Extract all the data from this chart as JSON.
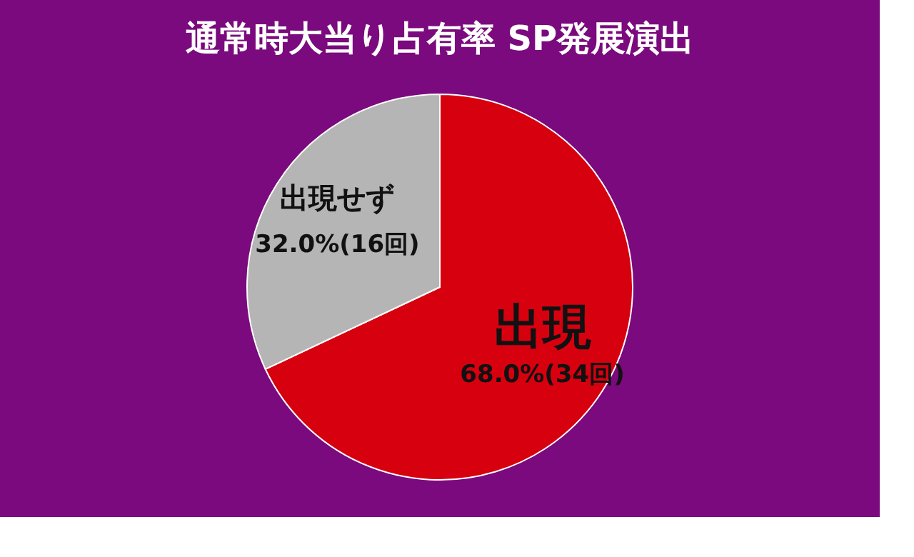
{
  "chart_data": {
    "type": "pie",
    "title": "通常時大当り占有率 SP発展演出",
    "categories": [
      "出現",
      "出現せず"
    ],
    "values": [
      68.0,
      32.0
    ],
    "value_labels": [
      "68.0%(34回)",
      "32.0%(16回)"
    ],
    "colors": [
      "#d7000f",
      "#b5b5b5"
    ],
    "legend": false
  }
}
